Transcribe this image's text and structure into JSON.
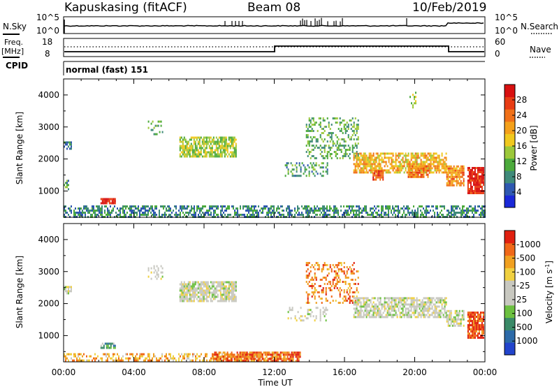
{
  "header": {
    "station": "Kapuskasing (fitACF)",
    "beam": "Beam 08",
    "date": "10/Feb/2019"
  },
  "strip_labels": {
    "nsky": "N.Sky",
    "nsky_hi": "10^5",
    "nsky_lo": "10^0",
    "nsearch": "N.Search",
    "nsearch_hi": "10^5",
    "nsearch_lo": "10^0",
    "freq": "Freq.",
    "freq_unit": "[MHz]",
    "freq_hi": "18",
    "freq_lo": "8",
    "nave": "Nave",
    "nave_hi": "60",
    "nave_lo": "0",
    "cpid": "CPID",
    "cpid_value": "normal (fast) 151"
  },
  "chart_data": [
    {
      "type": "heatmap",
      "panel": "power",
      "ylabel": "Slant Range [km]",
      "ylim": [
        180,
        4500
      ],
      "yticks": [
        1000,
        2000,
        3000,
        4000
      ],
      "colorbar_label": "Power [dB]",
      "colorbar_ticks": [
        "4",
        "8",
        "12",
        "16",
        "20",
        "24",
        "28"
      ],
      "colorbar_colors": [
        "#1a28d8",
        "#2e58b0",
        "#3f8a7a",
        "#4caa3c",
        "#9cc83a",
        "#f0c81e",
        "#f4a01a",
        "#f07018",
        "#e83c14",
        "#d81010"
      ],
      "echo_regions": [
        {
          "t0": 0.0,
          "t1": 24.0,
          "r0": 200,
          "r1": 550,
          "level": 0.25,
          "density": 0.55
        },
        {
          "t0": 0.0,
          "t1": 0.4,
          "r0": 2350,
          "r1": 2550,
          "level": 0.25,
          "density": 0.7
        },
        {
          "t0": 0.0,
          "t1": 0.3,
          "r0": 1050,
          "r1": 1350,
          "level": 0.3,
          "density": 0.6
        },
        {
          "t0": 2.1,
          "t1": 2.9,
          "r0": 600,
          "r1": 780,
          "level": 0.95,
          "density": 0.9
        },
        {
          "t0": 4.8,
          "t1": 5.6,
          "r0": 2800,
          "r1": 3200,
          "level": 0.35,
          "density": 0.3
        },
        {
          "t0": 6.6,
          "t1": 9.8,
          "r0": 2100,
          "r1": 2700,
          "level": 0.45,
          "density": 0.75
        },
        {
          "t0": 12.6,
          "t1": 15.0,
          "r0": 1500,
          "r1": 1900,
          "level": 0.3,
          "density": 0.3
        },
        {
          "t0": 13.8,
          "t1": 16.8,
          "r0": 2000,
          "r1": 3300,
          "level": 0.35,
          "density": 0.35
        },
        {
          "t0": 16.5,
          "t1": 21.8,
          "r0": 1600,
          "r1": 2200,
          "level": 0.6,
          "density": 0.7
        },
        {
          "t0": 17.6,
          "t1": 18.2,
          "r0": 1350,
          "r1": 1650,
          "level": 0.85,
          "density": 0.8
        },
        {
          "t0": 19.6,
          "t1": 20.8,
          "r0": 1450,
          "r1": 1800,
          "level": 0.75,
          "density": 0.75
        },
        {
          "t0": 21.8,
          "t1": 22.8,
          "r0": 1200,
          "r1": 1800,
          "level": 0.7,
          "density": 0.75
        },
        {
          "t0": 23.0,
          "t1": 23.9,
          "r0": 900,
          "r1": 1750,
          "level": 0.92,
          "density": 0.85
        },
        {
          "t0": 19.7,
          "t1": 20.1,
          "r0": 3600,
          "r1": 4100,
          "level": 0.4,
          "density": 0.25
        }
      ]
    },
    {
      "type": "heatmap",
      "panel": "velocity",
      "ylabel": "Slant Range [km]",
      "xlabel": "Time UT",
      "ylim": [
        180,
        4500
      ],
      "yticks": [
        1000,
        2000,
        3000,
        4000
      ],
      "xticks": [
        "00:00",
        "04:00",
        "08:00",
        "12:00",
        "16:00",
        "20:00",
        "00:00"
      ],
      "colorbar_label": "Velocity [m s^-1]",
      "colorbar_ticks": [
        "1000",
        "500",
        "100",
        "25",
        "-25",
        "-100",
        "-500",
        "-1000"
      ],
      "colorbar_colors": [
        "#2244cc",
        "#2c6aa8",
        "#3a8a68",
        "#6cc040",
        "#c8c8c0",
        "#c8c8c0",
        "#f0d040",
        "#f0a020",
        "#f06818",
        "#e02010"
      ],
      "echo_regions": [
        {
          "t0": 0.0,
          "t1": 12.5,
          "r0": 200,
          "r1": 450,
          "level": 0.72,
          "density": 0.5
        },
        {
          "t0": 8.5,
          "t1": 13.5,
          "r0": 200,
          "r1": 500,
          "level": 0.85,
          "density": 0.75
        },
        {
          "t0": 0.0,
          "t1": 0.4,
          "r0": 2350,
          "r1": 2550,
          "level": 0.5,
          "density": 0.6
        },
        {
          "t0": 2.1,
          "t1": 2.9,
          "r0": 600,
          "r1": 780,
          "level": 0.3,
          "density": 0.8
        },
        {
          "t0": 4.8,
          "t1": 5.6,
          "r0": 2800,
          "r1": 3200,
          "level": 0.5,
          "density": 0.3
        },
        {
          "t0": 6.6,
          "t1": 9.8,
          "r0": 2100,
          "r1": 2700,
          "level": 0.5,
          "density": 0.8
        },
        {
          "t0": 12.6,
          "t1": 15.0,
          "r0": 1500,
          "r1": 1900,
          "level": 0.5,
          "density": 0.25
        },
        {
          "t0": 13.8,
          "t1": 16.8,
          "r0": 2000,
          "r1": 3300,
          "level": 0.8,
          "density": 0.3
        },
        {
          "t0": 16.5,
          "t1": 21.8,
          "r0": 1600,
          "r1": 2200,
          "level": 0.5,
          "density": 0.7
        },
        {
          "t0": 21.8,
          "t1": 22.8,
          "r0": 1300,
          "r1": 1800,
          "level": 0.5,
          "density": 0.7
        },
        {
          "t0": 23.0,
          "t1": 23.9,
          "r0": 900,
          "r1": 1750,
          "level": 0.88,
          "density": 0.85
        }
      ]
    }
  ]
}
